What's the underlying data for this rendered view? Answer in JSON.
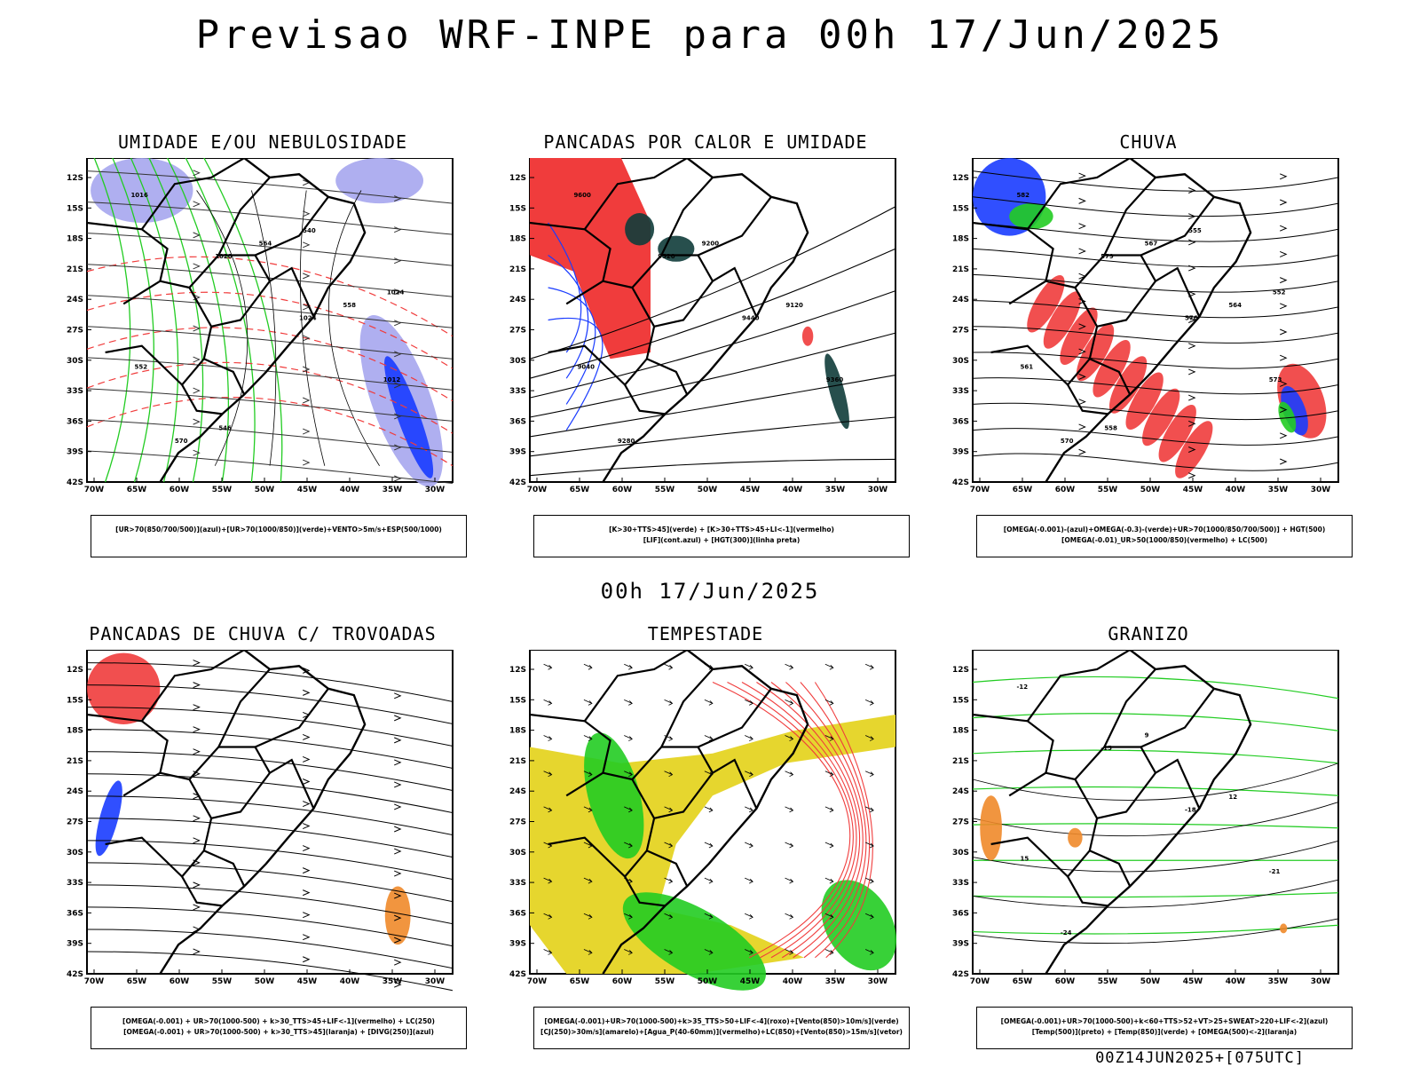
{
  "header": {
    "title": "Previsao WRF-INPE  para 00h 17/Jun/2025"
  },
  "mid_date": "00h 17/Jun/2025",
  "footer_run": "00Z14JUN2025+[075UTC]",
  "axes": {
    "lat_labels": [
      "12S",
      "15S",
      "18S",
      "21S",
      "24S",
      "27S",
      "30S",
      "33S",
      "36S",
      "39S",
      "42S"
    ],
    "lon_labels": [
      "70W",
      "65W",
      "60W",
      "55W",
      "50W",
      "45W",
      "40W",
      "35W",
      "30W"
    ]
  },
  "colors": {
    "blue": "#1a3cff",
    "lightblue": "#a6a6ee",
    "green": "#22cc22",
    "red": "#f03c3c",
    "yellow": "#e6d62e",
    "orange": "#f08a2a",
    "darkteal": "#0f3c3a",
    "black": "#000000"
  },
  "panels": [
    {
      "id": "umidade",
      "title": "UMIDADE E/OU NEBULOSIDADE",
      "legend": [
        "[UR>70(850/700/500)](azul)+[UR>70(1000/850)](verde)+VENTO>5m/s+ESP(500/1000)"
      ],
      "contour_labels": [
        "1016",
        "1020",
        "1024",
        "1012",
        "570",
        "564",
        "558",
        "552",
        "546",
        "540",
        "1024"
      ]
    },
    {
      "id": "pancadas_calor",
      "title": "PANCADAS POR CALOR E UMIDADE",
      "legend": [
        "[K>30+TTS>45](verde) + [K>30+TTS>45+LI<-1](vermelho)",
        "[LIF](cont.azul) + [HGT(300)](linha preta)"
      ],
      "contour_labels": [
        "9600",
        "9520",
        "9440",
        "9360",
        "9280",
        "9200",
        "9120",
        "9040"
      ]
    },
    {
      "id": "chuva",
      "title": "CHUVA",
      "legend": [
        "[OMEGA(-0.001)-(azul)+OMEGA(-0.3)-(verde)+UR>70(1000/850/700/500)] + HGT(500)",
        "[OMEGA(-0.01)_UR>50(1000/850)(vermelho) + LC(500)"
      ],
      "contour_labels": [
        "582",
        "579",
        "576",
        "573",
        "570",
        "567",
        "564",
        "561",
        "558",
        "555",
        "552"
      ]
    },
    {
      "id": "trovoadas",
      "title": "PANCADAS DE CHUVA C/ TROVOADAS",
      "legend": [
        "[OMEGA(-0.001) + UR>70(1000-500) + k>30_TTS>45+LIF<-1](vermelho) + LC(250)",
        "[OMEGA(-0.001) + UR>70(1000-500) + k>30_TTS>45](laranja) + [DIVG(250)](azul)"
      ],
      "contour_labels": []
    },
    {
      "id": "tempestade",
      "title": "TEMPESTADE",
      "legend": [
        "[OMEGA(-0.001)+UR>70(1000-500)+k>35_TTS>50+LIF<-4](roxo)+[Vento(850)>10m/s](verde)",
        "[CJ(250)>30m/s](amarelo)+[Agua_P(40-60mm)](vermelho)+LC(850)+[Vento(850)>15m/s](vetor)"
      ],
      "contour_labels": []
    },
    {
      "id": "granizo",
      "title": "GRANIZO",
      "legend": [
        "[OMEGA(-0.001)+UR>70(1000-500)+k<60+TTS>52+VT>25+SWEAT>220+LIF<-2](azul)",
        "[Temp(500)](preto) + [Temp(850)](verde) + [OMEGA(500)<-2](laranja)"
      ],
      "contour_labels": [
        "-12",
        "-15",
        "-18",
        "-21",
        "-24",
        "9",
        "12",
        "15"
      ]
    }
  ]
}
